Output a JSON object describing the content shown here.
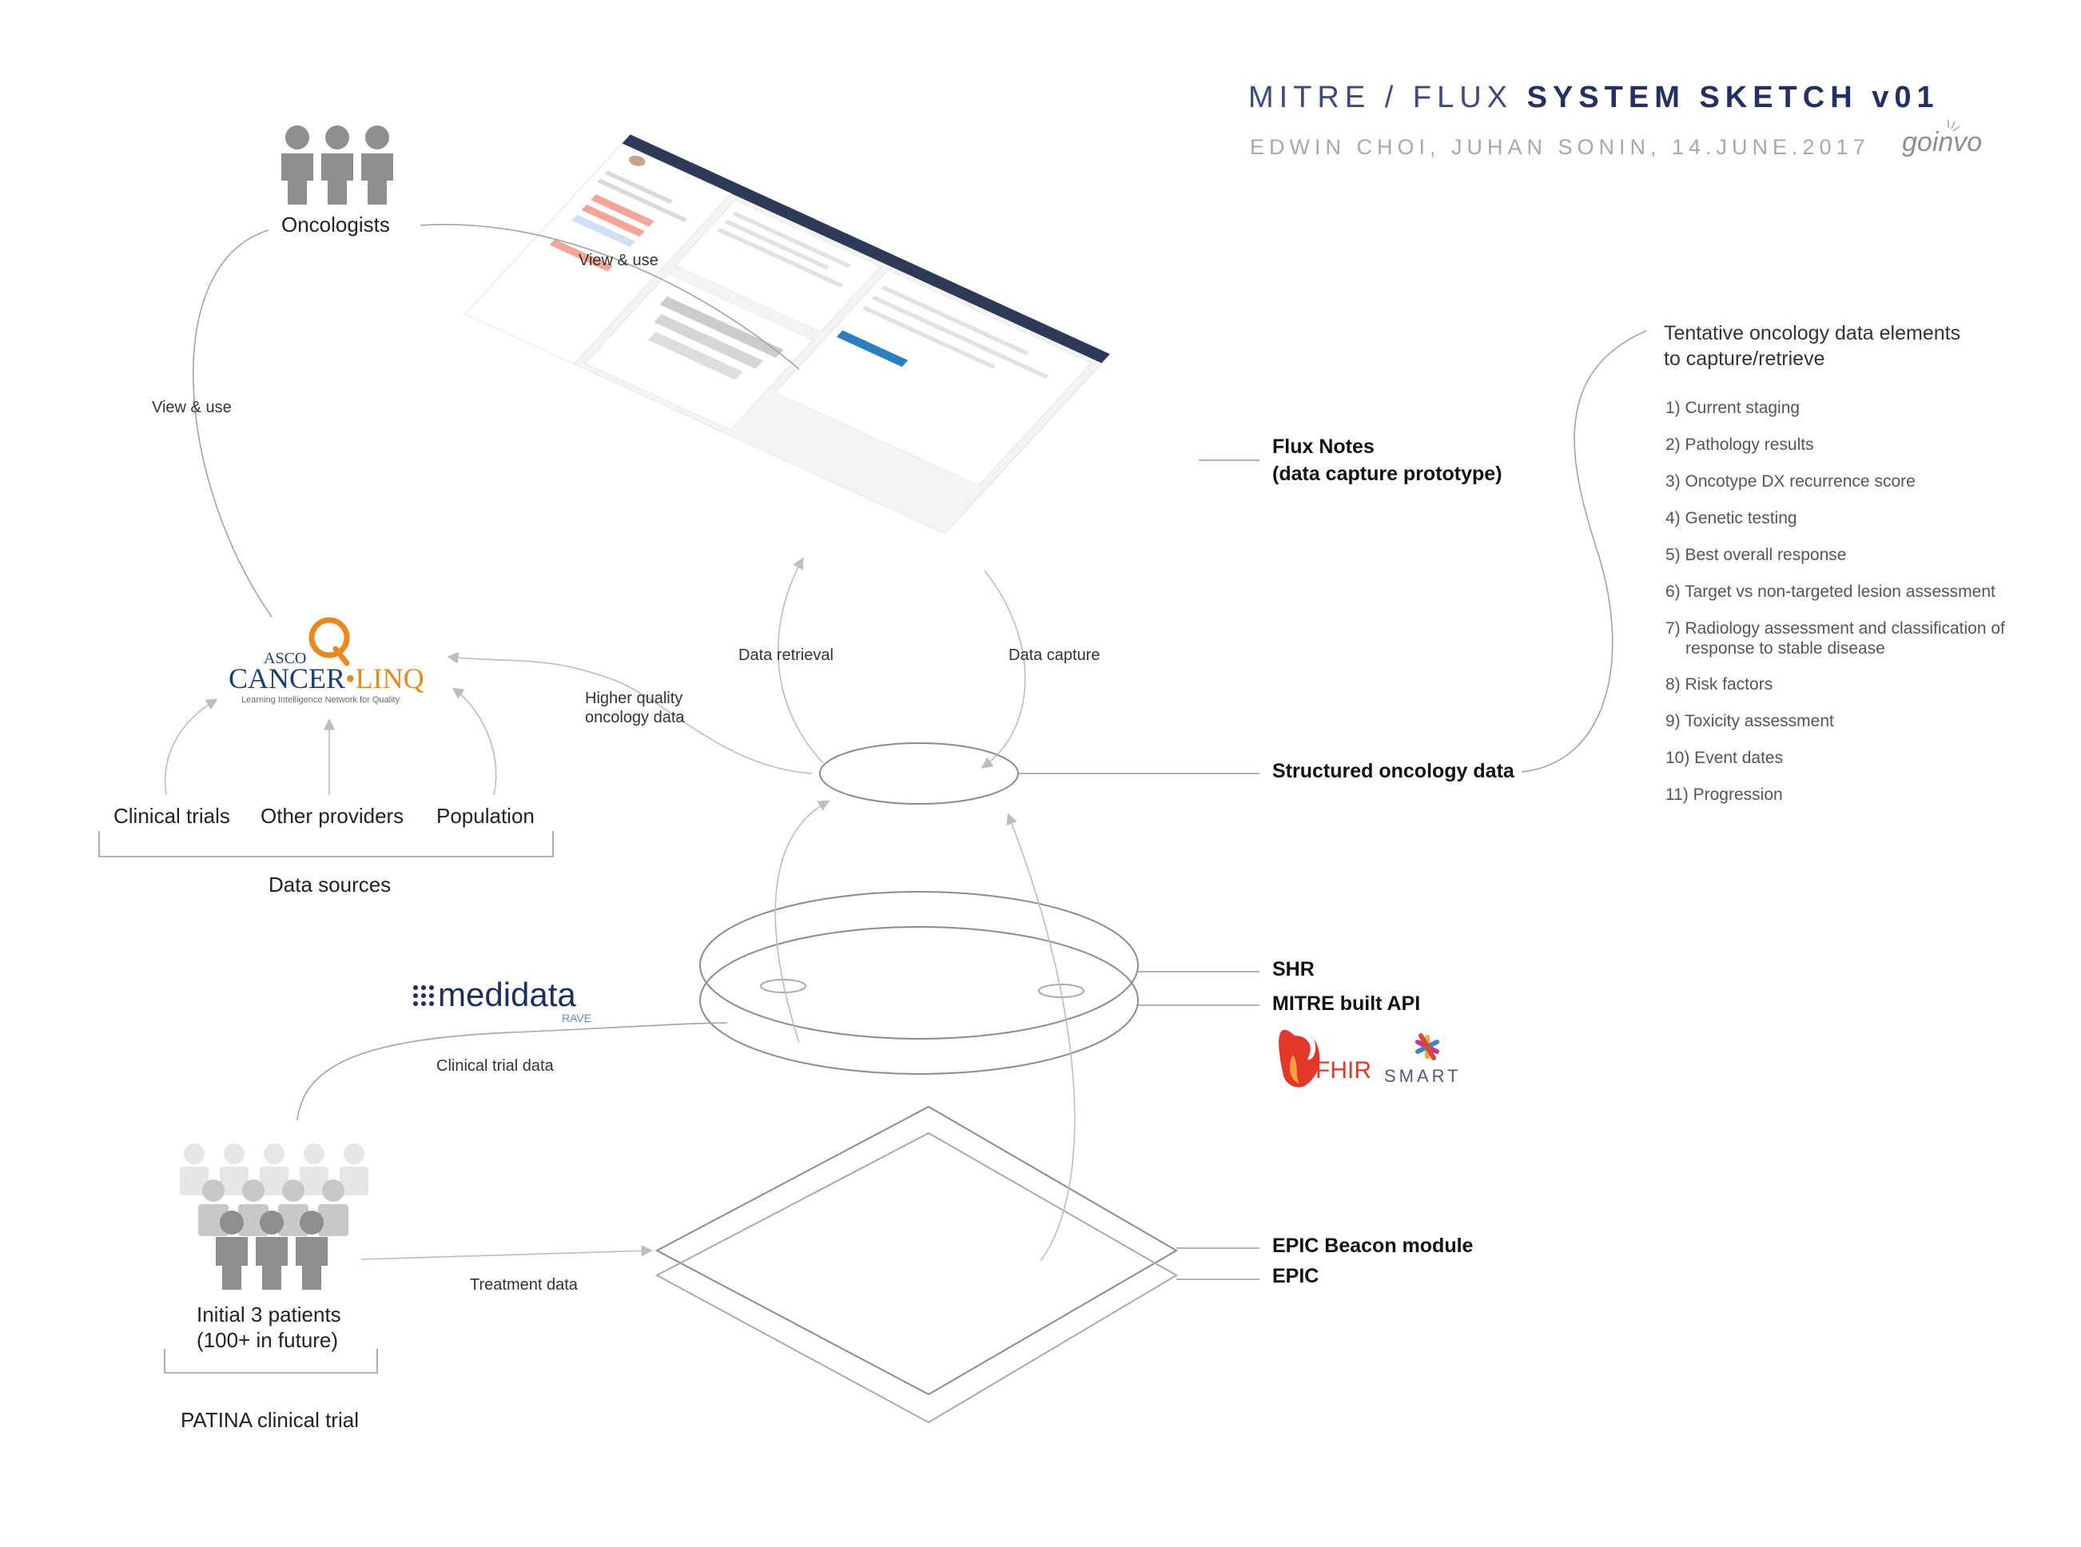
{
  "header": {
    "title_prefix": "MITRE / FLUX",
    "title_strong": "SYSTEM SKETCH v01",
    "byline": "EDWIN CHOI, JUHAN SONIN, 14.JUNE.2017",
    "brand_logo_text": "goinvo"
  },
  "actors": {
    "oncologists": "Oncologists",
    "patients_line1": "Initial 3 patients",
    "patients_line2": "(100+ in future)",
    "patients_group": "PATINA clinical trial"
  },
  "data_sources": {
    "items": [
      "Clinical trials",
      "Other providers",
      "Population"
    ],
    "group_label": "Data sources"
  },
  "edge_labels": {
    "view_use_top": "View & use",
    "view_use_left": "View & use",
    "higher_quality_1": "Higher quality",
    "higher_quality_2": "oncology data",
    "data_retrieval": "Data retrieval",
    "data_capture": "Data capture",
    "clinical_trial_data": "Clinical trial data",
    "treatment_data": "Treatment data"
  },
  "components": {
    "flux_notes_1": "Flux Notes",
    "flux_notes_2": "(data capture prototype)",
    "structured": "Structured oncology data",
    "shr": "SHR",
    "mitre_api": "MITRE built API",
    "epic_beacon": "EPIC Beacon module",
    "epic": "EPIC"
  },
  "logos": {
    "cancerlinq_asco": "ASCO",
    "cancerlinq_name_a": "CANCER",
    "cancerlinq_name_b": "LINQ",
    "cancerlinq_tagline": "Learning Intelligence Network for Quality",
    "medidata_name": "medidata",
    "medidata_sub": "RAVE",
    "fhir": "FHIR",
    "smart": "SMART"
  },
  "data_elements": {
    "heading_1": "Tentative oncology data elements",
    "heading_2": "to capture/retrieve",
    "items": [
      "1) Current staging",
      "2) Pathology results",
      "3) Oncotype DX recurrence score",
      "4) Genetic testing",
      "5) Best overall response",
      "6) Target vs non-targeted lesion assessment",
      "7) Radiology assessment and classification of response to stable disease",
      "8) Risk factors",
      "9) Toxicity assessment",
      "10) Event dates",
      "11) Progression"
    ]
  },
  "colors": {
    "title": "#243061",
    "line": "#9a9a9a",
    "arrow": "#bdbdbd",
    "fhir": "#e2372a",
    "cancerlinq_blue": "#1c3f73",
    "cancerlinq_orange": "#e8891f",
    "medidata": "#1d2f5c"
  }
}
